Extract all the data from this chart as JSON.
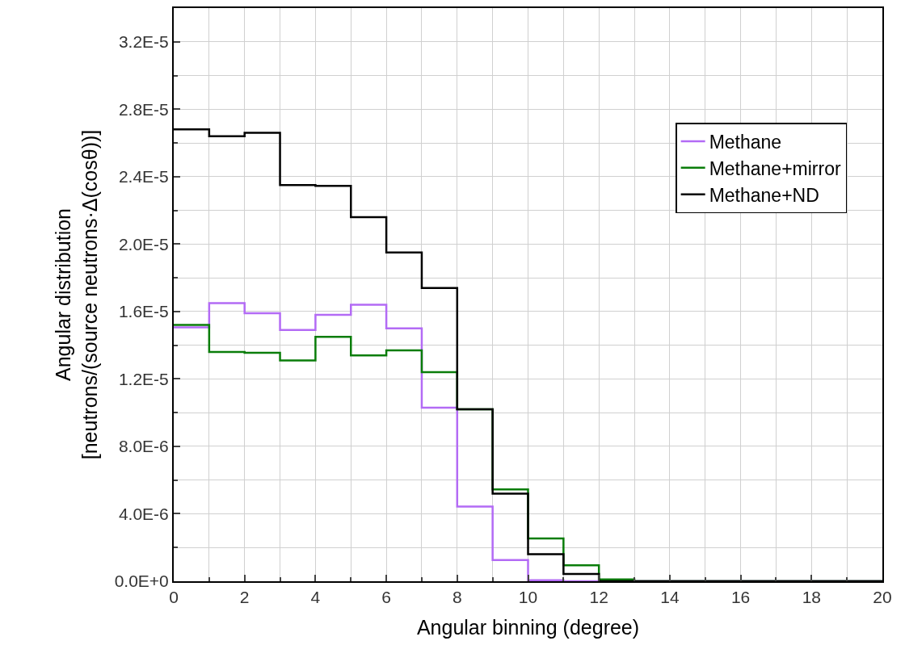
{
  "chart_data": {
    "type": "histogram",
    "xlabel": "Angular binning (degree)",
    "ylabel": "Angular distribution\n[neutrons/(source neutrons·Δ(cosθ))]",
    "bins": [
      0,
      1,
      2,
      3,
      4,
      5,
      6,
      7,
      8,
      9,
      10,
      11,
      12,
      13,
      14,
      15,
      16,
      17,
      18,
      19,
      20
    ],
    "series": [
      {
        "name": "Methane",
        "color": "#b36bf5",
        "values": [
          1.506e-05,
          1.65e-05,
          1.59e-05,
          1.49e-05,
          1.58e-05,
          1.64e-05,
          1.5e-05,
          1.03e-05,
          4.43e-06,
          1.26e-06,
          6e-08,
          0,
          0,
          0,
          0,
          0,
          0,
          0,
          0,
          0
        ]
      },
      {
        "name": "Methane+mirror",
        "color": "#0a7d0a",
        "values": [
          1.52e-05,
          1.36e-05,
          1.355e-05,
          1.31e-05,
          1.45e-05,
          1.34e-05,
          1.37e-05,
          1.24e-05,
          1.02e-05,
          5.45e-06,
          2.54e-06,
          9.4e-07,
          1.1e-07,
          0,
          0,
          0,
          0,
          0,
          0,
          0
        ]
      },
      {
        "name": "Methane+ND",
        "color": "#000000",
        "values": [
          2.68e-05,
          2.64e-05,
          2.66e-05,
          2.35e-05,
          2.345e-05,
          2.16e-05,
          1.95e-05,
          1.74e-05,
          1.02e-05,
          5.2e-06,
          1.6e-06,
          4.3e-07,
          0,
          0,
          0,
          0,
          0,
          0,
          0,
          0
        ]
      }
    ],
    "xlim": [
      0,
      20
    ],
    "xticks": [
      0,
      2,
      4,
      6,
      8,
      10,
      12,
      14,
      16,
      18,
      20
    ],
    "ylim": [
      0,
      3.4e-05
    ],
    "yticks": [
      {
        "value": 0,
        "label": "0.0E+0"
      },
      {
        "value": 4e-06,
        "label": "4.0E-6"
      },
      {
        "value": 8e-06,
        "label": "8.0E-6"
      },
      {
        "value": 1.2e-05,
        "label": "1.2E-5"
      },
      {
        "value": 1.6e-05,
        "label": "1.6E-5"
      },
      {
        "value": 2e-05,
        "label": "2.0E-5"
      },
      {
        "value": 2.4e-05,
        "label": "2.4E-5"
      },
      {
        "value": 2.8e-05,
        "label": "2.8E-5"
      },
      {
        "value": 3.2e-05,
        "label": "3.2E-5"
      }
    ],
    "grid": true,
    "legend": "top right"
  }
}
